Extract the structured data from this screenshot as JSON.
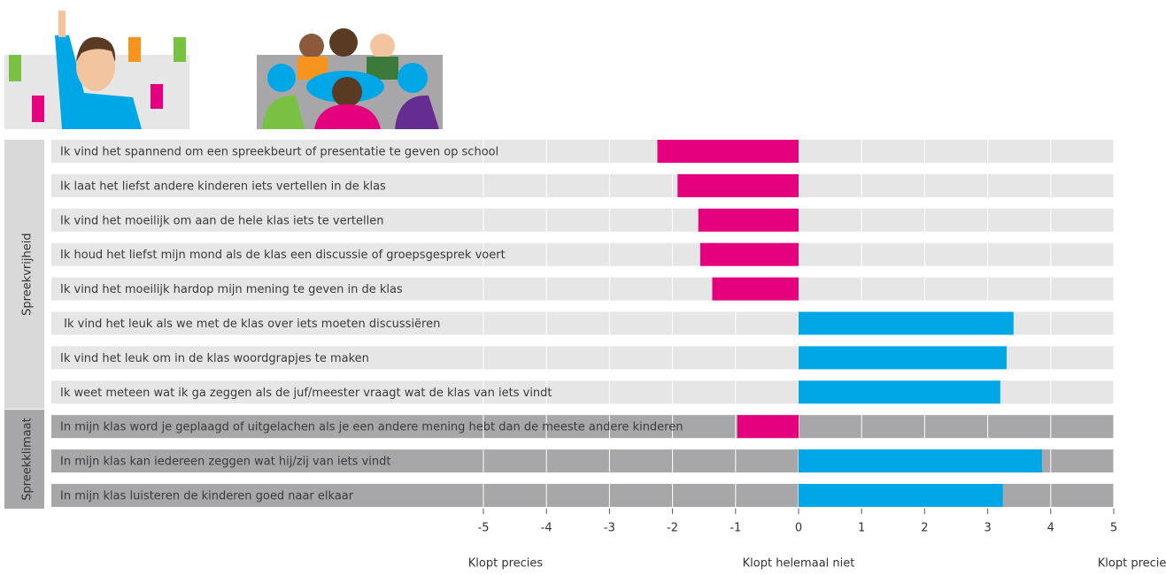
{
  "chart_data": {
    "type": "bar",
    "orientation": "horizontal",
    "groups": [
      {
        "name": "Spreekvrijheid",
        "band_color": "#e6e6e7",
        "label_panel_color": "#d9d9da",
        "categories": [
          "Ik vind het spannend om een spreekbeurt of presentatie te geven op school",
          "Ik laat het liefst andere kinderen iets vertellen in de klas",
          "Ik vind het moeilijk om aan de hele klas iets te vertellen",
          "Ik houd het liefst mijn mond als de klas een discussie of groepsgesprek voert",
          "Ik vind het moeilijk hardop mijn mening te geven in de klas",
          " Ik vind het leuk als we met de klas over iets moeten discussiëren",
          "Ik vind het leuk om in de klas woordgrapjes te maken",
          "Ik weet meteen wat ik ga zeggen als de juf/meester vraagt wat de klas van iets vindt"
        ],
        "values": [
          -2.24,
          -1.92,
          -1.59,
          -1.56,
          -1.37,
          3.41,
          3.3,
          3.2
        ]
      },
      {
        "name": "Spreekklimaat",
        "band_color": "#a7a7a9",
        "label_panel_color": "#a7a7a9",
        "categories": [
          "In mijn klas word je geplaagd of uitgelachen als je een andere mening hebt dan de meeste andere kinderen",
          "In mijn klas kan iedereen zeggen wat hij/zij van iets vindt",
          "In mijn klas luisteren de kinderen goed naar elkaar"
        ],
        "values": [
          -0.97,
          3.86,
          3.24
        ]
      }
    ],
    "colors": {
      "negative": "#e5007d",
      "positive": "#00a7e7"
    },
    "xlim": [
      -5,
      5
    ],
    "xticks": [
      -5,
      -4,
      -3,
      -2,
      -1,
      0,
      1,
      2,
      3,
      4,
      5
    ],
    "grid": true,
    "axis_labels": [
      "Klopt precies",
      "Klopt helemaal niet",
      "Klopt precies"
    ]
  }
}
